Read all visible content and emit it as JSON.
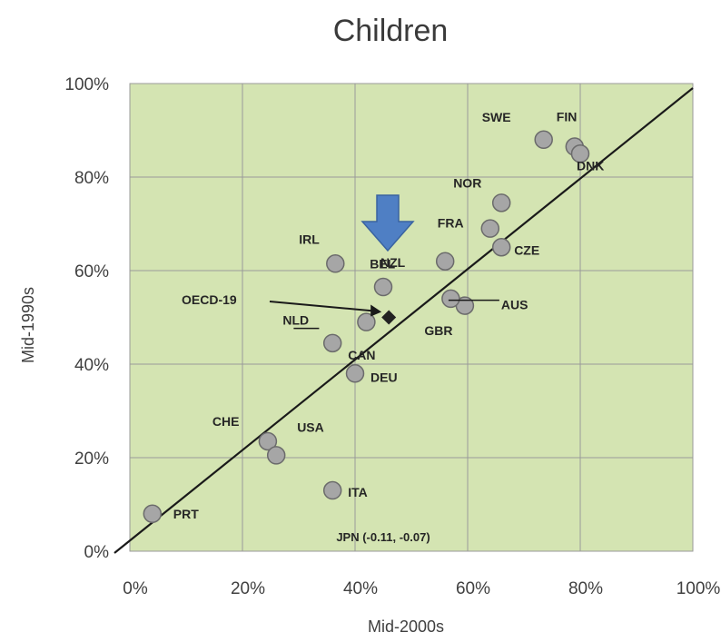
{
  "chart_data": {
    "type": "scatter",
    "title": "Children",
    "xlabel": "Mid-2000s",
    "ylabel": "Mid-1990s",
    "xlim": [
      0,
      100
    ],
    "ylim": [
      0,
      100
    ],
    "x_ticks": [
      "0%",
      "20%",
      "40%",
      "60%",
      "80%",
      "100%"
    ],
    "y_ticks": [
      "0%",
      "20%",
      "40%",
      "60%",
      "80%",
      "100%"
    ],
    "grid": true,
    "reference_line": "diagonal",
    "colors": {
      "plot_bg": "#d4e4b2",
      "grid": "#9a9a9a",
      "point": "#a6a6a6",
      "point_stroke": "#6b6b6b",
      "oecd_marker": "#222222",
      "arrow": "#4f7fc4"
    },
    "points": [
      {
        "label": "FIN",
        "x": 79,
        "y": 86.5
      },
      {
        "label": "SWE",
        "x": 73.5,
        "y": 88
      },
      {
        "label": "DNK",
        "x": 80,
        "y": 85
      },
      {
        "label": "NOR",
        "x": 66,
        "y": 74.5
      },
      {
        "label": "FRA",
        "x": 64,
        "y": 69
      },
      {
        "label": "BEL",
        "x": 56,
        "y": 62
      },
      {
        "label": "CZE",
        "x": 66,
        "y": 65
      },
      {
        "label": "IRL",
        "x": 36.5,
        "y": 61.5
      },
      {
        "label": "NZL",
        "x": 45,
        "y": 56.5
      },
      {
        "label": "AUS",
        "x": 59.5,
        "y": 52.5
      },
      {
        "label": "GBR",
        "x": 57,
        "y": 54
      },
      {
        "label": "NLD",
        "x": 42,
        "y": 49
      },
      {
        "label": "CAN",
        "x": 36,
        "y": 44.5
      },
      {
        "label": "DEU",
        "x": 40,
        "y": 38
      },
      {
        "label": "CHE",
        "x": 24.5,
        "y": 23.5
      },
      {
        "label": "USA",
        "x": 26,
        "y": 20.5
      },
      {
        "label": "ITA",
        "x": 36,
        "y": 13
      },
      {
        "label": "PRT",
        "x": 4,
        "y": 8
      }
    ],
    "oecd_average": {
      "label": "OECD-19",
      "x": 46,
      "y": 50
    },
    "annotations": [
      "JPN (-0.11, -0.07)"
    ]
  }
}
